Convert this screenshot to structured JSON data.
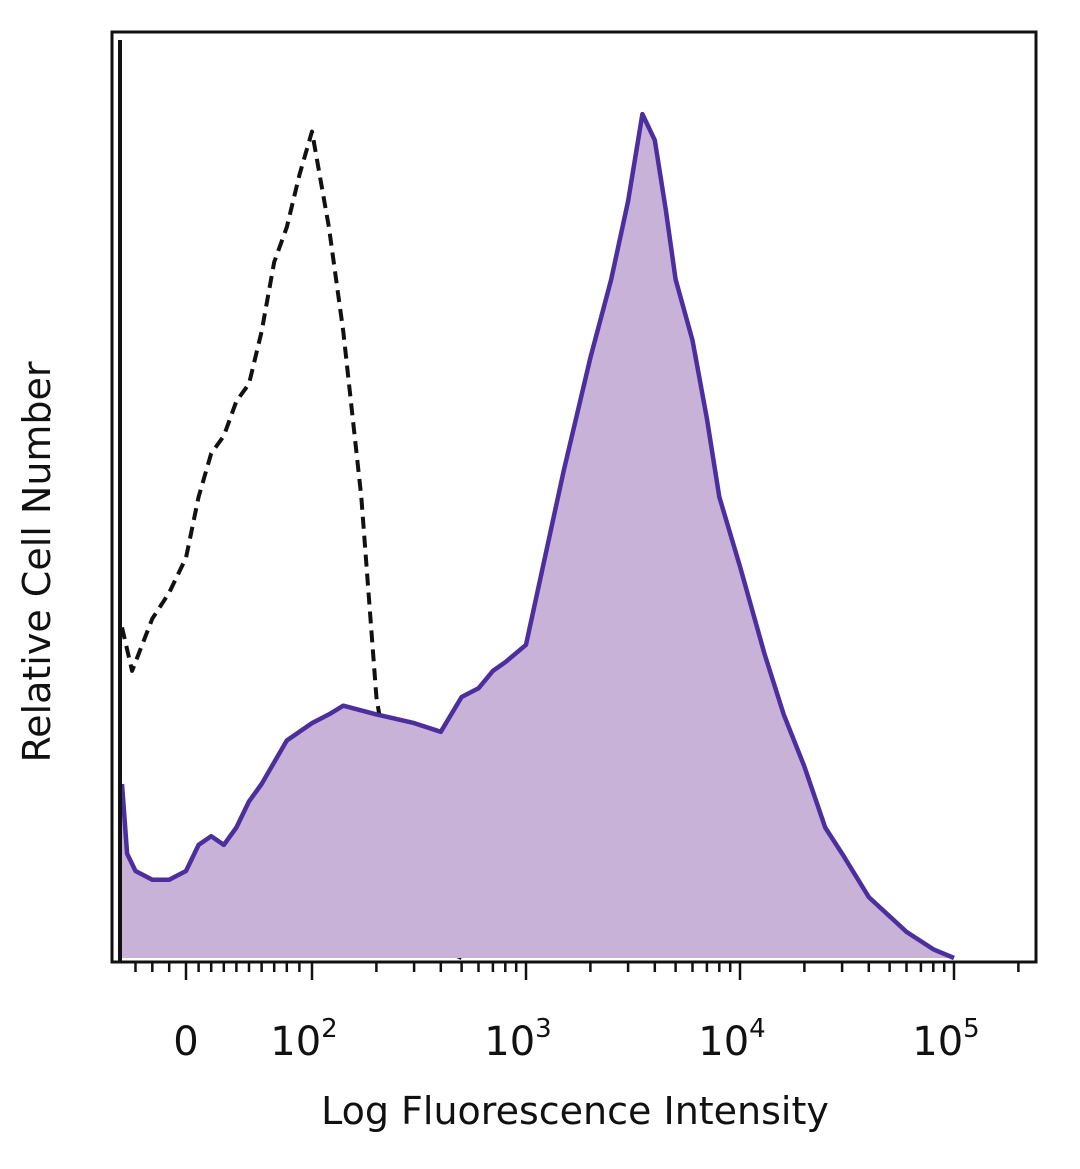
{
  "chart_data": {
    "type": "area",
    "title": "",
    "xlabel": "Log Fluorescence Intensity",
    "ylabel": "Relative Cell Number",
    "x_scale": "biexponential",
    "xlim": [
      -40,
      200000
    ],
    "ylim": [
      0,
      100
    ],
    "grid": false,
    "legend": "none",
    "x_ticks": [
      {
        "value": 0,
        "label": "0"
      },
      {
        "value": 100,
        "base": "10",
        "exp": "2"
      },
      {
        "value": 1000,
        "base": "10",
        "exp": "3"
      },
      {
        "value": 10000,
        "base": "10",
        "exp": "4"
      },
      {
        "value": 100000,
        "base": "10",
        "exp": "5"
      }
    ],
    "series": [
      {
        "style": "dashed",
        "color": "#111111",
        "fill": "none",
        "x": [
          -38,
          -32,
          -28,
          -20,
          -10,
          0,
          10,
          20,
          30,
          40,
          50,
          60,
          70,
          80,
          90,
          100,
          120,
          140,
          170,
          200,
          240,
          300,
          400,
          500
        ],
        "y": [
          38,
          33,
          35,
          39,
          42,
          46,
          53,
          58,
          60,
          64,
          66,
          72,
          80,
          84,
          90,
          95,
          84,
          72,
          53,
          30,
          18,
          7,
          1,
          0
        ]
      },
      {
        "style": "solid",
        "color": "#4b2f9e",
        "fill": "#c8b2d8",
        "x": [
          -38,
          -35,
          -30,
          -20,
          -10,
          0,
          10,
          20,
          30,
          40,
          50,
          60,
          80,
          100,
          120,
          140,
          200,
          300,
          400,
          500,
          600,
          700,
          800,
          1000,
          1500,
          2000,
          2500,
          3000,
          3500,
          4000,
          4500,
          5000,
          6000,
          7000,
          8000,
          10000,
          13000,
          16000,
          20000,
          25000,
          30000,
          40000,
          60000,
          80000,
          100000
        ],
        "y": [
          20,
          12,
          10,
          9,
          9,
          10,
          13,
          14,
          13,
          15,
          18,
          20,
          25,
          27,
          28,
          29,
          28,
          27,
          26,
          30,
          31,
          33,
          34,
          36,
          56,
          69,
          78,
          87,
          97,
          94,
          86,
          78,
          71,
          62,
          53,
          45,
          35,
          28,
          22,
          15,
          12,
          7,
          3,
          1,
          0
        ]
      }
    ]
  }
}
